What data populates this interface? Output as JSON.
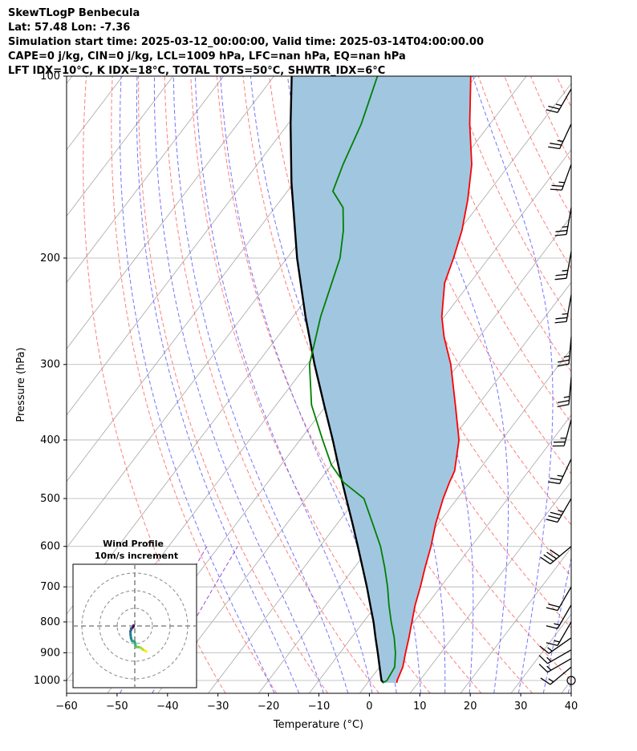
{
  "header": {
    "line1": "SkewTLogP Benbecula",
    "line2": "Lat: 57.48   Lon: -7.36",
    "line3": "Simulation start time: 2025-03-12_00:00:00, Valid time: 2025-03-14T04:00:00.00",
    "line4": "CAPE=0 j/kg, CIN=0 j/kg, LCL=1009 hPa, LFC=nan hPa, EQ=nan hPa",
    "line5": "LFT IDX=10°C, K IDX=18°C, TOTAL TOTS=50°C, SHWTR_IDX=6°C"
  },
  "chart_data": {
    "type": "line",
    "title": "SkewTLogP Benbecula",
    "xlabel": "Temperature (°C)",
    "ylabel": "Pressure (hPa)",
    "xlim": [
      -60,
      40
    ],
    "ylim": [
      1050,
      100
    ],
    "yscale": "log",
    "xticks": [
      "−60",
      "−50",
      "−40",
      "−30",
      "−20",
      "−10",
      "0",
      "10",
      "20",
      "30",
      "40"
    ],
    "yticks": [
      {
        "p": 1000,
        "label": "1000"
      },
      {
        "p": 900,
        "label": "900"
      },
      {
        "p": 800,
        "label": "800"
      },
      {
        "p": 700,
        "label": "700"
      },
      {
        "p": 600,
        "label": "600"
      },
      {
        "p": 500,
        "label": "500"
      },
      {
        "p": 400,
        "label": "400"
      },
      {
        "p": 300,
        "label": "300"
      },
      {
        "p": 200,
        "label": "200"
      },
      {
        "p": 100,
        "label": "100"
      }
    ],
    "grid": true,
    "colors": {
      "temperature": "#ff0000",
      "dewpoint": "#008000",
      "parcel": "#000000",
      "shade": "#a1c6e0",
      "dry_adiabat": "#ff6666",
      "moist_adiabat": "#5a5aff",
      "mixing_ratio": "#9a4ed6",
      "isotherm": "#a6a6a6"
    },
    "series": [
      {
        "name": "Temperature",
        "points": [
          [
            1009,
            5.8
          ],
          [
            1000,
            5.5
          ],
          [
            950,
            4.6
          ],
          [
            900,
            3.0
          ],
          [
            850,
            1.4
          ],
          [
            800,
            -0.4
          ],
          [
            750,
            -2.3
          ],
          [
            700,
            -4.0
          ],
          [
            650,
            -6.0
          ],
          [
            600,
            -8.0
          ],
          [
            550,
            -10.5
          ],
          [
            500,
            -12.8
          ],
          [
            470,
            -14.0
          ],
          [
            450,
            -14.7
          ],
          [
            400,
            -18.5
          ],
          [
            350,
            -24.5
          ],
          [
            300,
            -31.5
          ],
          [
            270,
            -37.0
          ],
          [
            250,
            -40.5
          ],
          [
            220,
            -45.0
          ],
          [
            200,
            -47.0
          ],
          [
            180,
            -49.5
          ],
          [
            160,
            -53.0
          ],
          [
            140,
            -57.5
          ],
          [
            120,
            -64.0
          ],
          [
            100,
            -71.0
          ]
        ]
      },
      {
        "name": "Dewpoint",
        "points": [
          [
            1009,
            3.0
          ],
          [
            1000,
            3.5
          ],
          [
            950,
            3.0
          ],
          [
            900,
            1.0
          ],
          [
            850,
            -1.5
          ],
          [
            800,
            -4.5
          ],
          [
            750,
            -7.5
          ],
          [
            700,
            -10.5
          ],
          [
            650,
            -14.0
          ],
          [
            600,
            -18.0
          ],
          [
            550,
            -23.0
          ],
          [
            500,
            -28.5
          ],
          [
            470,
            -35.0
          ],
          [
            440,
            -40.0
          ],
          [
            400,
            -45.5
          ],
          [
            350,
            -53.0
          ],
          [
            300,
            -59.5
          ],
          [
            250,
            -64.5
          ],
          [
            200,
            -69.5
          ],
          [
            180,
            -73.0
          ],
          [
            165,
            -76.5
          ],
          [
            155,
            -81.0
          ],
          [
            140,
            -83.0
          ],
          [
            120,
            -85.5
          ],
          [
            100,
            -89.5
          ]
        ]
      },
      {
        "name": "Parcel",
        "points": [
          [
            1009,
            3.2
          ],
          [
            1000,
            2.4
          ],
          [
            950,
            0.0
          ],
          [
            900,
            -2.5
          ],
          [
            850,
            -5.2
          ],
          [
            800,
            -8.0
          ],
          [
            750,
            -11.2
          ],
          [
            700,
            -14.6
          ],
          [
            650,
            -18.4
          ],
          [
            600,
            -22.5
          ],
          [
            550,
            -27.0
          ],
          [
            500,
            -32.0
          ],
          [
            450,
            -37.5
          ],
          [
            400,
            -43.5
          ],
          [
            350,
            -50.5
          ],
          [
            300,
            -58.5
          ],
          [
            250,
            -67.5
          ],
          [
            200,
            -78.0
          ],
          [
            150,
            -90.5
          ],
          [
            120,
            -99.5
          ],
          [
            100,
            -106.5
          ]
        ]
      }
    ],
    "wind_barbs": [
      {
        "p": 1000,
        "speed_kt": 0,
        "calm": true
      },
      {
        "p": 950,
        "speed_kt": 15,
        "dir_deg": 230
      },
      {
        "p": 920,
        "speed_kt": 15,
        "dir_deg": 240
      },
      {
        "p": 890,
        "speed_kt": 15,
        "dir_deg": 240
      },
      {
        "p": 850,
        "speed_kt": 15,
        "dir_deg": 235
      },
      {
        "p": 800,
        "speed_kt": 15,
        "dir_deg": 210
      },
      {
        "p": 750,
        "speed_kt": 15,
        "dir_deg": 210
      },
      {
        "p": 700,
        "speed_kt": 20,
        "dir_deg": 210
      },
      {
        "p": 600,
        "speed_kt": 40,
        "dir_deg": 230
      },
      {
        "p": 500,
        "speed_kt": 35,
        "dir_deg": 210
      },
      {
        "p": 430,
        "speed_kt": 25,
        "dir_deg": 205
      },
      {
        "p": 370,
        "speed_kt": 25,
        "dir_deg": 195
      },
      {
        "p": 315,
        "speed_kt": 25,
        "dir_deg": 185
      },
      {
        "p": 270,
        "speed_kt": 25,
        "dir_deg": 185
      },
      {
        "p": 230,
        "speed_kt": 25,
        "dir_deg": 190
      },
      {
        "p": 195,
        "speed_kt": 25,
        "dir_deg": 190
      },
      {
        "p": 165,
        "speed_kt": 25,
        "dir_deg": 190
      },
      {
        "p": 140,
        "speed_kt": 25,
        "dir_deg": 200
      },
      {
        "p": 120,
        "speed_kt": 25,
        "dir_deg": 205
      },
      {
        "p": 105,
        "speed_kt": 25,
        "dir_deg": 210
      }
    ],
    "hodograph": {
      "title": "Wind Profile",
      "subtitle": "10m/s increment",
      "ring_step_ms": 10,
      "points_uv": [
        [
          6.5,
          -14.5
        ],
        [
          5.8,
          -14.0
        ],
        [
          4.6,
          -13.4
        ],
        [
          3.6,
          -12.4
        ],
        [
          2.3,
          -12.0
        ],
        [
          0.8,
          -12.0
        ],
        [
          0.4,
          -11.0
        ],
        [
          0.2,
          -9.5
        ],
        [
          -0.3,
          -8.8
        ],
        [
          -1.6,
          -8.5
        ],
        [
          -2.1,
          -7.0
        ],
        [
          -2.4,
          -5.0
        ],
        [
          -2.5,
          -3.0
        ],
        [
          -2.0,
          -2.2
        ],
        [
          -2.1,
          -1.4
        ],
        [
          -1.5,
          -1.2
        ],
        [
          -1.0,
          -0.8
        ],
        [
          -0.8,
          -0.4
        ],
        [
          -0.7,
          0.2
        ],
        [
          -0.9,
          -0.5
        ]
      ]
    }
  }
}
